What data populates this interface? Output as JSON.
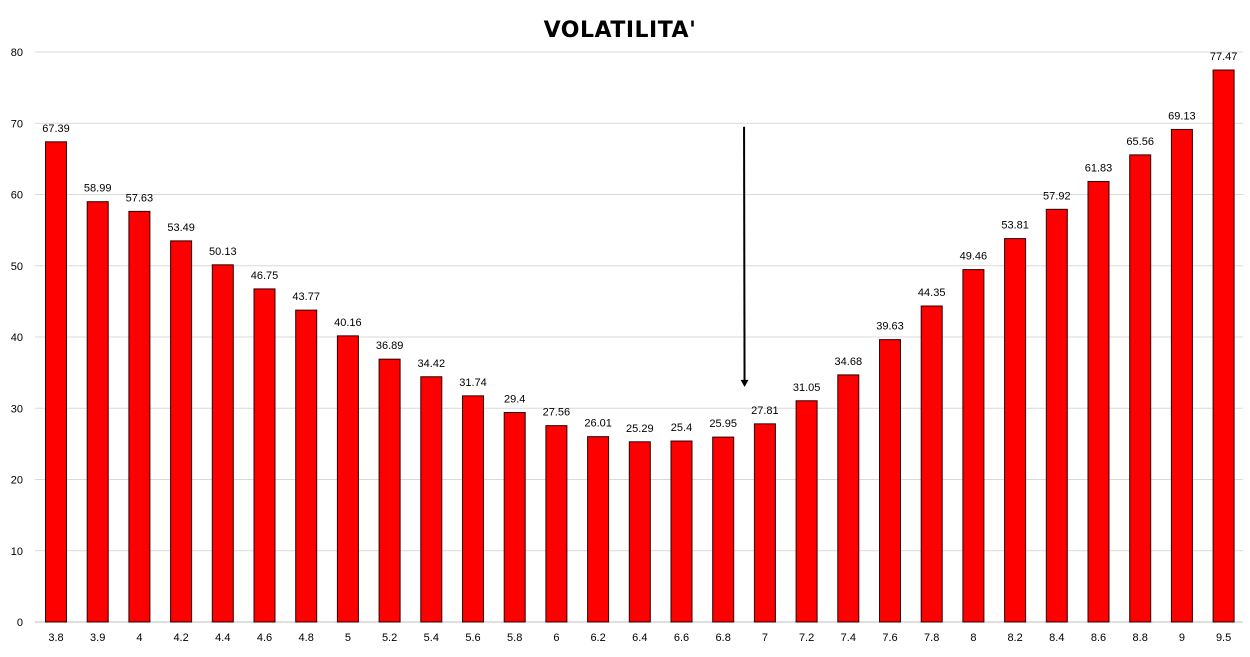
{
  "chart_data": {
    "type": "bar",
    "title": "VOLATILITA'",
    "xlabel": "",
    "ylabel": "",
    "ylim": [
      0,
      80
    ],
    "yticks": [
      0,
      10,
      20,
      30,
      40,
      50,
      60,
      70,
      80
    ],
    "grid": true,
    "legend": "none",
    "bar_color": "#ff0000",
    "categories": [
      "3.8",
      "3.9",
      "4",
      "4.2",
      "4.4",
      "4.6",
      "4.8",
      "5",
      "5.2",
      "5.4",
      "5.6",
      "5.8",
      "6",
      "6.2",
      "6.4",
      "6.6",
      "6.8",
      "7",
      "7.2",
      "7.4",
      "7.6",
      "7.8",
      "8",
      "8.2",
      "8.4",
      "8.6",
      "8.8",
      "9",
      "9.5"
    ],
    "values": [
      67.39,
      58.99,
      57.63,
      53.49,
      50.13,
      46.75,
      43.77,
      40.16,
      36.89,
      34.42,
      31.74,
      29.4,
      27.56,
      26.01,
      25.29,
      25.4,
      25.95,
      27.81,
      31.05,
      34.68,
      39.63,
      44.35,
      49.46,
      53.81,
      57.92,
      61.83,
      65.56,
      69.13,
      77.47
    ],
    "annotations": [
      {
        "type": "arrow",
        "direction": "down",
        "between": [
          "6.8",
          "7"
        ],
        "from_y": 69.5,
        "to_y": 33
      }
    ]
  }
}
